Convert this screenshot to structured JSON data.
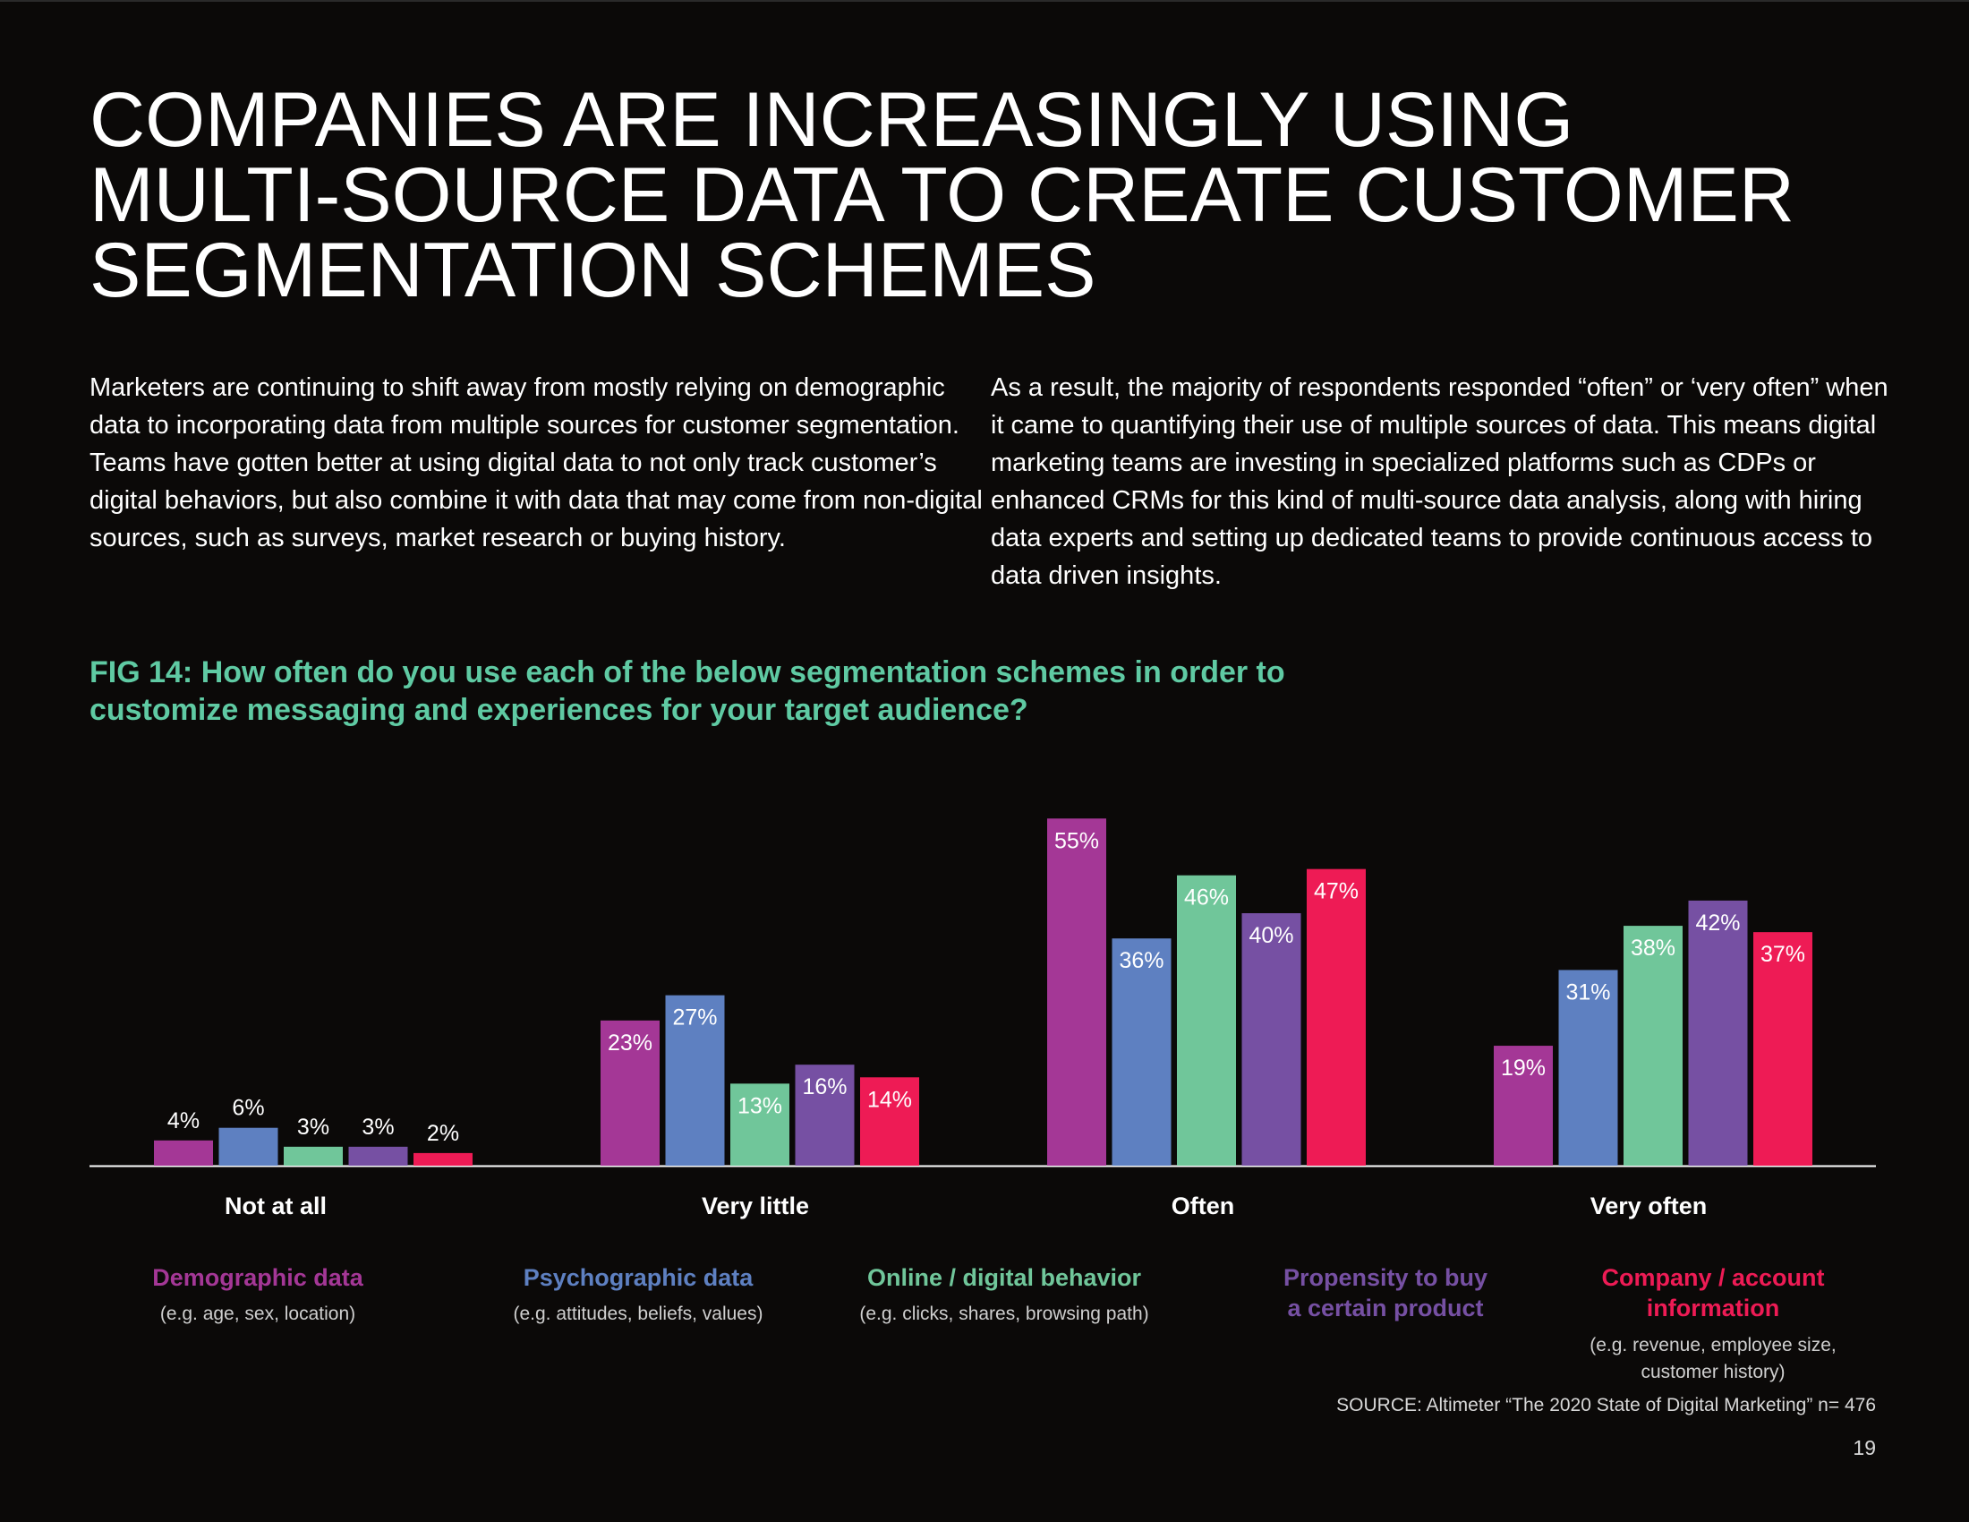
{
  "title": "COMPANIES ARE INCREASINGLY USING\nMULTI-SOURCE DATA TO CREATE CUSTOMER\nSEGMENTATION SCHEMES",
  "body_left": "Marketers are continuing to shift away from mostly relying on demographic data to incorporating data from multiple sources for customer segmentation. Teams have gotten better at using digital data to not only track customer’s digital behaviors, but also combine it with data that may come from non-digital sources, such as surveys, market research or buying history.",
  "body_right": "As a result, the majority of respondents responded “often” or ‘very often” when it came to quantifying their use of multiple sources of data. This means digital marketing teams are investing in specialized platforms such as CDPs or enhanced CRMs for this kind of multi-source data analysis, along with hiring data experts and setting up dedicated teams to provide continuous access to data driven insights.",
  "fig_title": "FIG 14: How often do you use each of the below segmentation schemes in order to\ncustomize messaging and experiences for your target audience?",
  "colors": {
    "accent": "#5fcaa3",
    "series": [
      "#a43796",
      "#5e80c1",
      "#70c69a",
      "#7650a3",
      "#ee1b55"
    ]
  },
  "chart_data": {
    "type": "bar",
    "title": "How often do you use each of the below segmentation schemes in order to customize messaging and experiences for your target audience?",
    "categories": [
      "Not at all",
      "Very little",
      "Often",
      "Very often"
    ],
    "series": [
      {
        "name": "Demographic data",
        "example": "(e.g. age, sex, location)",
        "values": [
          4,
          23,
          55,
          19
        ]
      },
      {
        "name": "Psychographic data",
        "example": "(e.g. attitudes, beliefs, values)",
        "values": [
          6,
          27,
          36,
          31
        ]
      },
      {
        "name": "Online / digital behavior",
        "example": "(e.g. clicks, shares, browsing path)",
        "values": [
          3,
          13,
          46,
          38
        ]
      },
      {
        "name": "Propensity to buy\na certain product",
        "example": "",
        "values": [
          3,
          16,
          40,
          42
        ]
      },
      {
        "name": "Company / account\ninformation",
        "example": "(e.g. revenue, employee size,\ncustomer history)",
        "values": [
          2,
          14,
          47,
          37
        ]
      }
    ],
    "value_suffix": "%",
    "ylim": [
      0,
      60
    ],
    "xlabel": "",
    "ylabel": "",
    "grid": false,
    "legend_position": "bottom"
  },
  "source": "SOURCE: Altimeter “The 2020 State of Digital Marketing” n= 476",
  "page_number": "19"
}
